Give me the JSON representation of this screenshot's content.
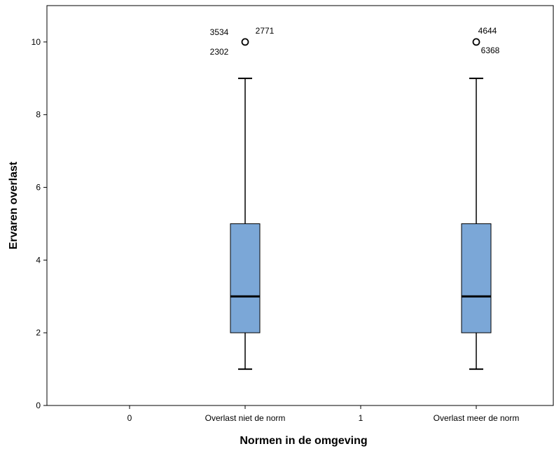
{
  "chart_data": {
    "type": "boxplot",
    "xlabel": "Normen in de omgeving",
    "ylabel": "Ervaren overlast",
    "categories": [
      "0",
      "Overlast niet de norm",
      "1",
      "Overlast meer de norm"
    ],
    "ylim": [
      0,
      11
    ],
    "yticks": [
      0,
      2,
      4,
      6,
      8,
      10
    ],
    "grid": false,
    "box_color": "#7BA7D7",
    "boxes": [
      {
        "category": "Overlast niet de norm",
        "whisker_low": 1,
        "q1": 2,
        "median": 3,
        "q3": 5,
        "whisker_high": 9,
        "outliers": [
          {
            "value": 10,
            "labels": [
              "3534",
              "2771",
              "2302"
            ]
          }
        ]
      },
      {
        "category": "Overlast meer de norm",
        "whisker_low": 1,
        "q1": 2,
        "median": 3,
        "q3": 5,
        "whisker_high": 9,
        "outliers": [
          {
            "value": 10,
            "labels": [
              "4644",
              "6368"
            ]
          }
        ]
      }
    ]
  }
}
